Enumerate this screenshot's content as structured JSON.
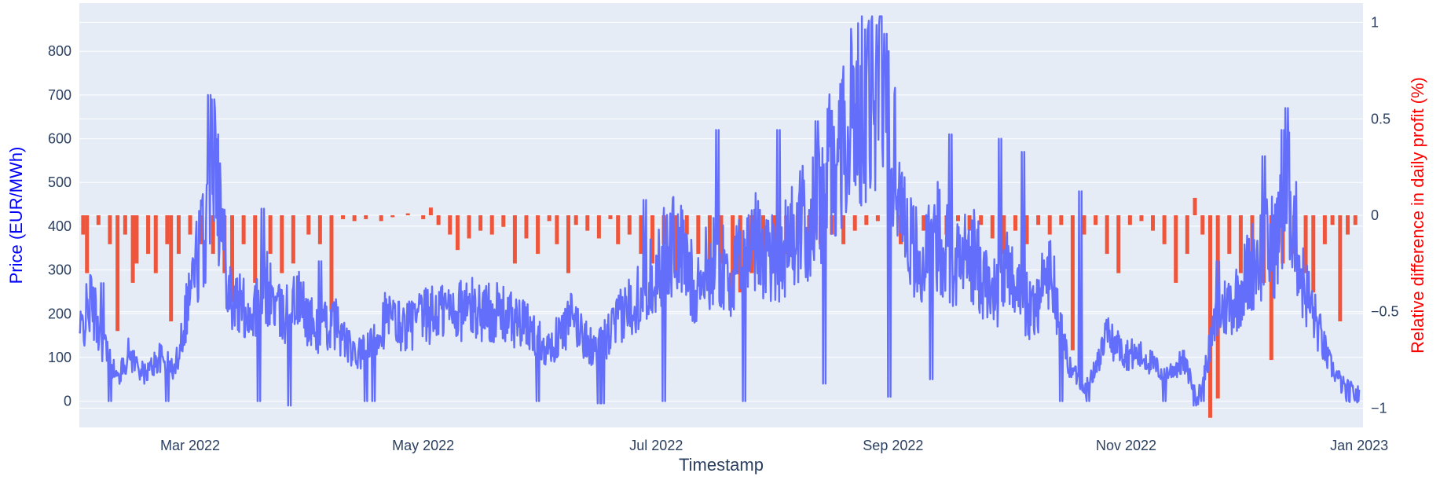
{
  "chart_data": {
    "type": "line+bar",
    "title": "",
    "xlabel": "Timestamp",
    "ylabel_left": "Price (EUR/MWh)",
    "ylabel_right": "Relative difference in daily profit (%)",
    "colors": {
      "plot_bg": "#e5ecf6",
      "grid": "#ffffff",
      "price_line": "#636efa",
      "bars": "#ef553b",
      "left_title": "#0000ff",
      "right_title": "#ff0000",
      "tick_text": "#2a3f5f"
    },
    "x_range": [
      "2022-01-31",
      "2023-01-02"
    ],
    "x_tick_labels": [
      "Mar 2022",
      "May 2022",
      "Jul 2022",
      "Sep 2022",
      "Nov 2022",
      "Jan 2023"
    ],
    "x_tick_dates": [
      "2022-03-01",
      "2022-05-01",
      "2022-07-01",
      "2022-09-01",
      "2022-11-01",
      "2023-01-01"
    ],
    "y_left_range": [
      -60,
      910
    ],
    "y_left_ticks": [
      0,
      100,
      200,
      300,
      400,
      500,
      600,
      700,
      800
    ],
    "y_right_range": [
      -1.1,
      1.1
    ],
    "y_right_ticks": [
      -1,
      -0.5,
      0,
      0.5,
      1
    ],
    "y_right_tick_labels": [
      "−1",
      "−0.5",
      "0",
      "0.5",
      "1"
    ],
    "price_keypoints": [
      [
        "2022-01-31",
        150
      ],
      [
        "2022-02-03",
        230
      ],
      [
        "2022-02-06",
        140
      ],
      [
        "2022-02-10",
        50
      ],
      [
        "2022-02-13",
        110
      ],
      [
        "2022-02-17",
        60
      ],
      [
        "2022-02-21",
        100
      ],
      [
        "2022-02-25",
        70
      ],
      [
        "2022-03-01",
        260
      ],
      [
        "2022-03-05",
        400
      ],
      [
        "2022-03-07",
        640
      ],
      [
        "2022-03-09",
        420
      ],
      [
        "2022-03-12",
        230
      ],
      [
        "2022-03-17",
        200
      ],
      [
        "2022-03-21",
        260
      ],
      [
        "2022-03-25",
        190
      ],
      [
        "2022-03-29",
        230
      ],
      [
        "2022-04-03",
        160
      ],
      [
        "2022-04-08",
        180
      ],
      [
        "2022-04-13",
        100
      ],
      [
        "2022-04-17",
        120
      ],
      [
        "2022-04-21",
        190
      ],
      [
        "2022-04-26",
        170
      ],
      [
        "2022-05-01",
        190
      ],
      [
        "2022-05-07",
        210
      ],
      [
        "2022-05-14",
        210
      ],
      [
        "2022-05-21",
        200
      ],
      [
        "2022-05-28",
        170
      ],
      [
        "2022-06-03",
        120
      ],
      [
        "2022-06-09",
        190
      ],
      [
        "2022-06-15",
        110
      ],
      [
        "2022-06-20",
        170
      ],
      [
        "2022-06-25",
        230
      ],
      [
        "2022-07-01",
        300
      ],
      [
        "2022-07-06",
        370
      ],
      [
        "2022-07-11",
        260
      ],
      [
        "2022-07-16",
        320
      ],
      [
        "2022-07-21",
        280
      ],
      [
        "2022-07-26",
        370
      ],
      [
        "2022-08-01",
        330
      ],
      [
        "2022-08-06",
        380
      ],
      [
        "2022-08-12",
        430
      ],
      [
        "2022-08-18",
        600
      ],
      [
        "2022-08-24",
        680
      ],
      [
        "2022-08-29",
        750
      ],
      [
        "2022-09-03",
        470
      ],
      [
        "2022-09-08",
        300
      ],
      [
        "2022-09-13",
        380
      ],
      [
        "2022-09-17",
        320
      ],
      [
        "2022-09-22",
        330
      ],
      [
        "2022-09-27",
        240
      ],
      [
        "2022-10-02",
        300
      ],
      [
        "2022-10-07",
        200
      ],
      [
        "2022-10-12",
        300
      ],
      [
        "2022-10-17",
        80
      ],
      [
        "2022-10-22",
        30
      ],
      [
        "2022-10-27",
        150
      ],
      [
        "2022-11-01",
        110
      ],
      [
        "2022-11-06",
        100
      ],
      [
        "2022-11-11",
        60
      ],
      [
        "2022-11-16",
        90
      ],
      [
        "2022-11-20",
        10
      ],
      [
        "2022-11-25",
        200
      ],
      [
        "2022-11-30",
        240
      ],
      [
        "2022-12-05",
        330
      ],
      [
        "2022-12-10",
        360
      ],
      [
        "2022-12-14",
        470
      ],
      [
        "2022-12-17",
        280
      ],
      [
        "2022-12-20",
        200
      ],
      [
        "2022-12-24",
        90
      ],
      [
        "2022-12-28",
        30
      ],
      [
        "2023-01-01",
        10
      ]
    ],
    "price_spikes": [
      [
        "2022-03-06",
        700
      ],
      [
        "2022-03-07",
        690
      ],
      [
        "2022-03-08",
        610
      ],
      [
        "2022-03-20",
        440
      ],
      [
        "2022-07-17",
        620
      ],
      [
        "2022-08-02",
        620
      ],
      [
        "2022-08-12",
        640
      ],
      [
        "2022-08-17",
        540
      ],
      [
        "2022-08-22",
        760
      ],
      [
        "2022-08-25",
        850
      ],
      [
        "2022-08-26",
        870
      ],
      [
        "2022-08-28",
        860
      ],
      [
        "2022-08-30",
        840
      ],
      [
        "2022-09-16",
        610
      ],
      [
        "2022-09-29",
        600
      ],
      [
        "2022-10-05",
        570
      ],
      [
        "2022-10-20",
        480
      ],
      [
        "2022-12-12",
        620
      ],
      [
        "2022-12-13",
        670
      ],
      [
        "2022-12-07",
        560
      ],
      [
        "2022-02-06",
        270
      ],
      [
        "2022-04-04",
        320
      ],
      [
        "2022-06-28",
        460
      ],
      [
        "2022-11-25",
        320
      ]
    ],
    "price_dips": [
      [
        "2022-02-08",
        0
      ],
      [
        "2022-02-23",
        0
      ],
      [
        "2022-03-19",
        0
      ],
      [
        "2022-03-27",
        -10
      ],
      [
        "2022-04-16",
        0
      ],
      [
        "2022-04-18",
        0
      ],
      [
        "2022-05-31",
        0
      ],
      [
        "2022-06-16",
        -5
      ],
      [
        "2022-06-17",
        -5
      ],
      [
        "2022-07-03",
        0
      ],
      [
        "2022-07-24",
        0
      ],
      [
        "2022-08-14",
        40
      ],
      [
        "2022-08-31",
        10
      ],
      [
        "2022-09-11",
        50
      ],
      [
        "2022-10-15",
        0
      ],
      [
        "2022-10-22",
        0
      ],
      [
        "2022-11-11",
        0
      ],
      [
        "2022-11-19",
        -10
      ],
      [
        "2022-11-21",
        0
      ],
      [
        "2022-12-29",
        0
      ]
    ],
    "profit_diff_bars": [
      [
        "2022-02-01",
        -0.1
      ],
      [
        "2022-02-02",
        -0.3
      ],
      [
        "2022-02-05",
        -0.05
      ],
      [
        "2022-02-08",
        -0.15
      ],
      [
        "2022-02-10",
        -0.6
      ],
      [
        "2022-02-12",
        -0.1
      ],
      [
        "2022-02-14",
        -0.35
      ],
      [
        "2022-02-15",
        -0.25
      ],
      [
        "2022-02-18",
        -0.2
      ],
      [
        "2022-02-20",
        -0.3
      ],
      [
        "2022-02-23",
        -0.15
      ],
      [
        "2022-02-24",
        -0.55
      ],
      [
        "2022-02-26",
        -0.2
      ],
      [
        "2022-03-01",
        -0.1
      ],
      [
        "2022-03-04",
        -0.15
      ],
      [
        "2022-03-07",
        -0.2
      ],
      [
        "2022-03-10",
        -0.3
      ],
      [
        "2022-03-12",
        -0.45
      ],
      [
        "2022-03-15",
        -0.15
      ],
      [
        "2022-03-18",
        -0.35
      ],
      [
        "2022-03-22",
        -0.2
      ],
      [
        "2022-03-25",
        -0.3
      ],
      [
        "2022-03-28",
        -0.25
      ],
      [
        "2022-04-01",
        -0.1
      ],
      [
        "2022-04-04",
        -0.15
      ],
      [
        "2022-04-07",
        -0.5
      ],
      [
        "2022-04-10",
        -0.02
      ],
      [
        "2022-04-13",
        -0.03
      ],
      [
        "2022-04-16",
        -0.02
      ],
      [
        "2022-04-20",
        -0.03
      ],
      [
        "2022-04-23",
        -0.01
      ],
      [
        "2022-04-27",
        0.01
      ],
      [
        "2022-05-01",
        -0.02
      ],
      [
        "2022-05-03",
        0.04
      ],
      [
        "2022-05-05",
        -0.05
      ],
      [
        "2022-05-08",
        -0.1
      ],
      [
        "2022-05-10",
        -0.18
      ],
      [
        "2022-05-13",
        -0.12
      ],
      [
        "2022-05-16",
        -0.08
      ],
      [
        "2022-05-19",
        -0.1
      ],
      [
        "2022-05-22",
        -0.06
      ],
      [
        "2022-05-25",
        -0.25
      ],
      [
        "2022-05-28",
        -0.12
      ],
      [
        "2022-05-31",
        -0.2
      ],
      [
        "2022-06-03",
        -0.03
      ],
      [
        "2022-06-05",
        -0.15
      ],
      [
        "2022-06-08",
        -0.3
      ],
      [
        "2022-06-10",
        -0.05
      ],
      [
        "2022-06-13",
        -0.08
      ],
      [
        "2022-06-16",
        -0.12
      ],
      [
        "2022-06-19",
        -0.02
      ],
      [
        "2022-06-21",
        -0.15
      ],
      [
        "2022-06-24",
        -0.1
      ],
      [
        "2022-06-27",
        -0.2
      ],
      [
        "2022-06-30",
        -0.25
      ],
      [
        "2022-07-03",
        -0.15
      ],
      [
        "2022-07-06",
        -0.3
      ],
      [
        "2022-07-09",
        -0.1
      ],
      [
        "2022-07-12",
        -0.2
      ],
      [
        "2022-07-15",
        -0.35
      ],
      [
        "2022-07-18",
        -0.25
      ],
      [
        "2022-07-21",
        -0.45
      ],
      [
        "2022-07-23",
        -0.4
      ],
      [
        "2022-07-26",
        -0.3
      ],
      [
        "2022-07-29",
        -0.25
      ],
      [
        "2022-08-01",
        -0.3
      ],
      [
        "2022-08-04",
        -0.2
      ],
      [
        "2022-08-07",
        -0.15
      ],
      [
        "2022-08-10",
        -0.2
      ],
      [
        "2022-08-13",
        -0.15
      ],
      [
        "2022-08-16",
        -0.1
      ],
      [
        "2022-08-19",
        -0.15
      ],
      [
        "2022-08-22",
        -0.08
      ],
      [
        "2022-08-25",
        -0.05
      ],
      [
        "2022-08-28",
        -0.03
      ],
      [
        "2022-08-31",
        -0.02
      ],
      [
        "2022-09-03",
        -0.15
      ],
      [
        "2022-09-06",
        -0.05
      ],
      [
        "2022-09-09",
        -0.08
      ],
      [
        "2022-09-12",
        -0.05
      ],
      [
        "2022-09-15",
        -0.1
      ],
      [
        "2022-09-18",
        -0.03
      ],
      [
        "2022-09-21",
        -0.08
      ],
      [
        "2022-09-24",
        -0.05
      ],
      [
        "2022-09-27",
        -0.12
      ],
      [
        "2022-09-30",
        -0.2
      ],
      [
        "2022-10-03",
        -0.08
      ],
      [
        "2022-10-06",
        -0.15
      ],
      [
        "2022-10-09",
        -0.05
      ],
      [
        "2022-10-12",
        -0.1
      ],
      [
        "2022-10-15",
        -0.05
      ],
      [
        "2022-10-18",
        -0.7
      ],
      [
        "2022-10-21",
        -0.1
      ],
      [
        "2022-10-24",
        -0.05
      ],
      [
        "2022-10-27",
        -0.2
      ],
      [
        "2022-10-30",
        -0.3
      ],
      [
        "2022-11-02",
        -0.05
      ],
      [
        "2022-11-05",
        -0.03
      ],
      [
        "2022-11-08",
        -0.08
      ],
      [
        "2022-11-11",
        -0.15
      ],
      [
        "2022-11-14",
        -0.35
      ],
      [
        "2022-11-17",
        -0.2
      ],
      [
        "2022-11-19",
        0.09
      ],
      [
        "2022-11-21",
        -0.1
      ],
      [
        "2022-11-23",
        -1.05
      ],
      [
        "2022-11-25",
        -0.95
      ],
      [
        "2022-11-28",
        -0.2
      ],
      [
        "2022-12-01",
        -0.3
      ],
      [
        "2022-12-04",
        -0.25
      ],
      [
        "2022-12-07",
        -0.35
      ],
      [
        "2022-12-09",
        -0.75
      ],
      [
        "2022-12-12",
        -0.25
      ],
      [
        "2022-12-15",
        -0.2
      ],
      [
        "2022-12-18",
        -0.3
      ],
      [
        "2022-12-20",
        -0.4
      ],
      [
        "2022-12-23",
        -0.15
      ],
      [
        "2022-12-25",
        -0.05
      ],
      [
        "2022-12-27",
        -0.55
      ],
      [
        "2022-12-29",
        -0.1
      ],
      [
        "2022-12-31",
        -0.05
      ]
    ]
  }
}
